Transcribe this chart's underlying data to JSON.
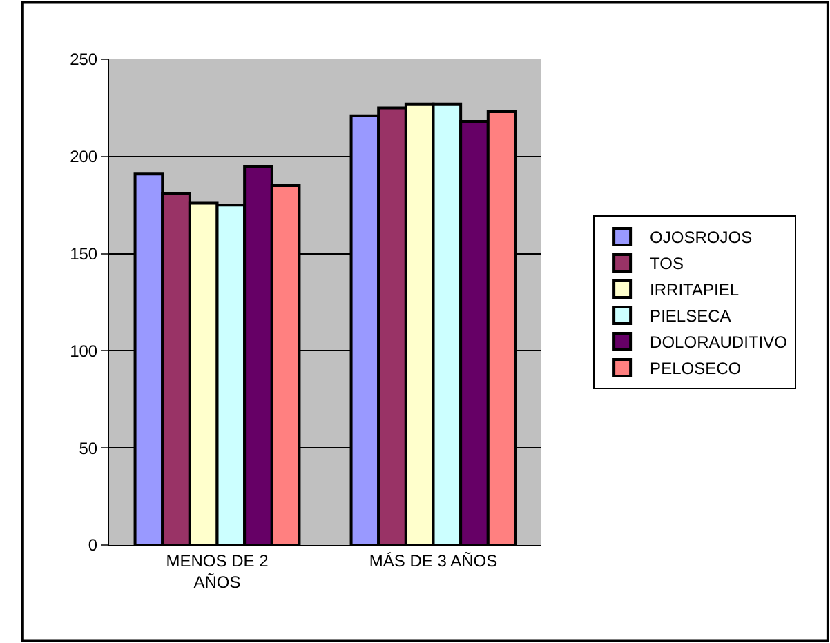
{
  "chart_data": {
    "type": "bar",
    "categories": [
      "MENOS DE 2 AÑOS",
      "MÁS DE 3 AÑOS"
    ],
    "series": [
      {
        "name": "OJOSROJOS",
        "color": "#9999ff",
        "values": [
          191,
          221
        ]
      },
      {
        "name": "TOS",
        "color": "#993366",
        "values": [
          181,
          225
        ]
      },
      {
        "name": "IRRITAPIEL",
        "color": "#ffffcc",
        "values": [
          176,
          227
        ]
      },
      {
        "name": "PIELSECA",
        "color": "#ccffff",
        "values": [
          175,
          227
        ]
      },
      {
        "name": "DOLORAUDITIVO",
        "color": "#660066",
        "values": [
          195,
          218
        ]
      },
      {
        "name": "PELOSECO",
        "color": "#ff8080",
        "values": [
          185,
          223
        ]
      }
    ],
    "ylim": [
      0,
      250
    ],
    "yticks": [
      0,
      50,
      100,
      150,
      200,
      250
    ],
    "grid": "y",
    "legend": "right"
  }
}
